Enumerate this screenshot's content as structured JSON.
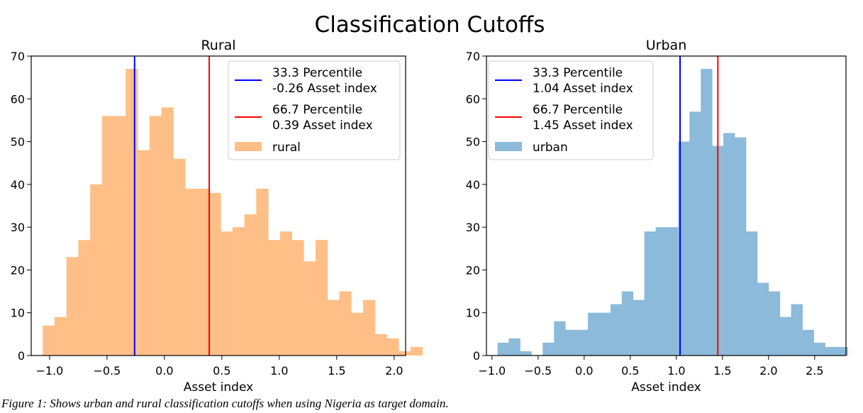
{
  "figure": {
    "suptitle": "Classification Cutoffs",
    "caption": "Figure 1: Shows urban and rural classification cutoffs when using Nigeria as target domain."
  },
  "chart_data": [
    {
      "type": "bar",
      "title": "Rural",
      "xlabel": "Asset index",
      "ylabel": "",
      "xlim": [
        -1.16,
        2.1
      ],
      "ylim": [
        0,
        70
      ],
      "xticks": [
        -1.0,
        -0.5,
        0.0,
        0.5,
        1.0,
        1.5,
        2.0
      ],
      "xtick_labels": [
        "−1.0",
        "−0.5",
        "0.0",
        "0.5",
        "1.0",
        "1.5",
        "2.0"
      ],
      "yticks": [
        0,
        10,
        20,
        30,
        40,
        50,
        60,
        70
      ],
      "ytick_labels": [
        "0",
        "10",
        "20",
        "30",
        "40",
        "50",
        "60",
        "70"
      ],
      "bins_start": -1.06,
      "bin_width": 0.1033,
      "counts": [
        7,
        9,
        23,
        27,
        40,
        56,
        56,
        67,
        48,
        56,
        58,
        46,
        39,
        39,
        38,
        29,
        30,
        33,
        39,
        27,
        29,
        27,
        22,
        27,
        13,
        15,
        10,
        13,
        5,
        4,
        1,
        2
      ],
      "hist_color": "#ffbf86",
      "series": [
        {
          "name": "33.3 Percentile",
          "detail": "-0.26 Asset index",
          "x": -0.26,
          "color": "#0000ff"
        },
        {
          "name": "66.7 Percentile",
          "detail": "0.39 Asset index",
          "x": 0.39,
          "color": "#ff0000"
        },
        {
          "name": "rural",
          "color": "#ffbf86"
        }
      ],
      "legend": "top-right",
      "grid": false
    },
    {
      "type": "bar",
      "title": "Urban",
      "xlabel": "Asset index",
      "ylabel": "",
      "xlim": [
        -1.06,
        2.84
      ],
      "ylim": [
        0,
        70
      ],
      "xticks": [
        -1.0,
        -0.5,
        0.0,
        0.5,
        1.0,
        1.5,
        2.0,
        2.5
      ],
      "xtick_labels": [
        "−1.0",
        "−0.5",
        "0.0",
        "0.5",
        "1.0",
        "1.5",
        "2.0",
        "2.5"
      ],
      "yticks": [
        0,
        10,
        20,
        30,
        40,
        50,
        60,
        70
      ],
      "ytick_labels": [
        "0",
        "10",
        "20",
        "30",
        "40",
        "50",
        "60",
        "70"
      ],
      "bins_start": -0.94,
      "bin_width": 0.1225,
      "counts": [
        3,
        4,
        1,
        0,
        3,
        8,
        6,
        6,
        10,
        10,
        12,
        15,
        13,
        29,
        30,
        30,
        50,
        57,
        67,
        49,
        52,
        51,
        29,
        17,
        15,
        9,
        12,
        6,
        3,
        2,
        2
      ],
      "hist_color": "#8cbada",
      "series": [
        {
          "name": "33.3 Percentile",
          "detail": "1.04 Asset index",
          "x": 1.04,
          "color": "#0000ff"
        },
        {
          "name": "66.7 Percentile",
          "detail": "1.45 Asset index",
          "x": 1.45,
          "color": "#ff0000"
        },
        {
          "name": "urban",
          "color": "#8cbada"
        }
      ],
      "legend": "top-left",
      "grid": false
    }
  ]
}
